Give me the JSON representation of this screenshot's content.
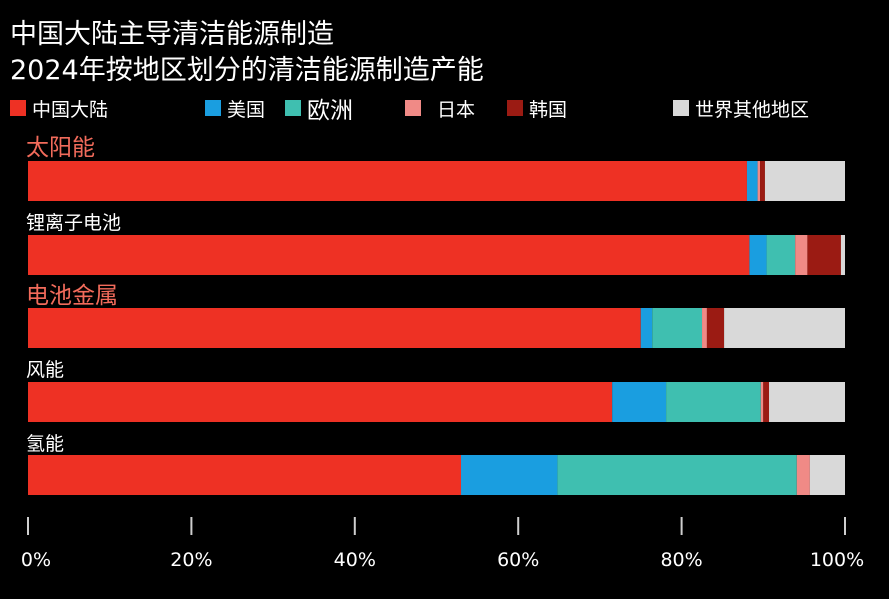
{
  "title": "中国大陆主导清洁能源制造",
  "subtitle": "2024年按地区划分的清洁能源制造产能",
  "chart_data": {
    "type": "bar",
    "orientation": "horizontal",
    "stacked": true,
    "categories": [
      "太阳能",
      "锂离子电池",
      "电池金属",
      "风能",
      "氢能"
    ],
    "category_label_colors": [
      "#f26b5b",
      "#ffffff",
      "#f26b5b",
      "#ffffff",
      "#ffffff"
    ],
    "series": [
      {
        "name": "中国大陆",
        "color": "#ee3124",
        "values": [
          88,
          88.3,
          75,
          71.5,
          53
        ]
      },
      {
        "name": "美国",
        "color": "#1a9ee0",
        "values": [
          1.3,
          2.1,
          1.4,
          6.6,
          11.8
        ]
      },
      {
        "name": "欧洲",
        "color": "#3fbfb0",
        "values": [
          0,
          3.5,
          6.1,
          11.6,
          29.3
        ]
      },
      {
        "name": "日本",
        "color": "#f08a86",
        "values": [
          0.3,
          1.5,
          0.6,
          0.3,
          1.6
        ]
      },
      {
        "name": "韩国",
        "color": "#9b1b13",
        "values": [
          0.6,
          4.1,
          2.1,
          0.7,
          0
        ]
      },
      {
        "name": "世界其他地区",
        "color": "#d9d9d9",
        "values": [
          9.8,
          0.5,
          14.8,
          9.3,
          4.3
        ]
      }
    ],
    "x_ticks": [
      "0%",
      "20%",
      "40%",
      "60%",
      "80%",
      "100%"
    ],
    "x_tick_values": [
      0,
      20,
      40,
      60,
      80,
      100
    ],
    "xlim": [
      0,
      100
    ],
    "grid": false,
    "legend_position": "top"
  }
}
